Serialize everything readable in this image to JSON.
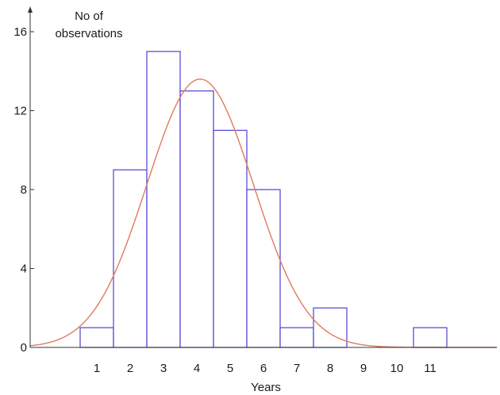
{
  "chart_data": {
    "type": "bar",
    "title": "",
    "xlabel": "Years",
    "ylabel": "No of observations",
    "ylabel_lines": [
      "No of",
      "observations"
    ],
    "categories": [
      1,
      2,
      3,
      4,
      5,
      6,
      7,
      8,
      9,
      10,
      11
    ],
    "values": [
      1,
      9,
      15,
      13,
      11,
      8,
      1,
      2,
      0,
      0,
      1
    ],
    "xlim": [
      -1,
      13
    ],
    "ylim": [
      0,
      16
    ],
    "yticks": [
      0,
      4,
      8,
      12,
      16
    ],
    "xticks": [
      1,
      2,
      3,
      4,
      5,
      6,
      7,
      8,
      9,
      10,
      11
    ],
    "fit_curve": {
      "type": "normal",
      "peak": 13.6,
      "mean": 4.1,
      "sd": 1.6
    },
    "grid": false,
    "colors": {
      "bar_stroke": "#5b4fd6",
      "bar_fill": "#ffffff",
      "curve": "#e07a5f",
      "axis": "#333333"
    }
  }
}
